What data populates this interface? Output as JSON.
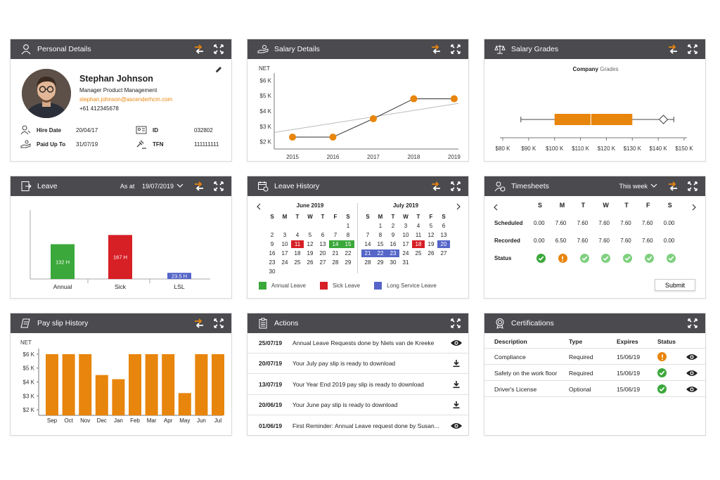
{
  "colors": {
    "header": "#4a4a4f",
    "accent": "#e8850c",
    "green": "#3aa83a",
    "red": "#d71f26",
    "blue": "#5566c8",
    "lightgreen": "#7fd07f"
  },
  "personal": {
    "title": "Personal Details",
    "name": "Stephan Johnson",
    "role": "Manager Product Management",
    "email": "stephan.johnson@ascenderhcm.com",
    "phone": "+61 412345678",
    "hire_label": "Hire Date",
    "hire_value": "20/04/17",
    "paid_label": "Paid Up To",
    "paid_value": "31/07/19",
    "id_label": "ID",
    "id_value": "032802",
    "tfn_label": "TFN",
    "tfn_value": "111111111"
  },
  "salary_details": {
    "title": "Salary Details",
    "chart_data": {
      "type": "line",
      "ylabel": "NET",
      "x": [
        "2015",
        "2016",
        "2017",
        "2018",
        "2019"
      ],
      "yticks": [
        "$2 K",
        "$3 K",
        "$4 K",
        "$5 K",
        "$6 K"
      ],
      "ylim": [
        1.8,
        6.2
      ],
      "series": [
        {
          "values": [
            2.3,
            2.3,
            3.5,
            4.8,
            4.8
          ]
        }
      ],
      "trend": [
        2.6,
        4.5
      ]
    }
  },
  "salary_grades": {
    "title": "Salary Grades",
    "subtitle_a": "Company",
    "subtitle_b": "Grades",
    "chart_data": {
      "type": "boxplot",
      "xticks": [
        "$80 K",
        "$90 K",
        "$100 K",
        "$110 K",
        "$120 K",
        "$130 K",
        "$140 K",
        "$150 K"
      ],
      "xlim": [
        80,
        150
      ],
      "whisker_low": 87,
      "q1": 100,
      "median": 114,
      "q3": 130,
      "whisker_high": 146,
      "marker": 142
    }
  },
  "leave": {
    "title": "Leave",
    "as_at_label": "As at",
    "as_at_value": "19/07/2019",
    "chart_data": {
      "type": "bar",
      "categories": [
        "Annual",
        "Sick",
        "LSL"
      ],
      "values": [
        132,
        167,
        23.5
      ],
      "labels": [
        "132 H",
        "167 H",
        "23.5 H"
      ],
      "ylim": [
        0,
        240
      ]
    }
  },
  "leave_history": {
    "title": "Leave History",
    "weekdays": [
      "S",
      "M",
      "T",
      "W",
      "T",
      "F",
      "S"
    ],
    "june": {
      "label": "June 2019"
    },
    "july": {
      "label": "July 2019"
    },
    "legend": {
      "annual": "Annual Leave",
      "sick": "Sick Leave",
      "lsl": "Long Service Leave"
    }
  },
  "timesheets": {
    "title": "Timesheets",
    "period": "This week",
    "days": [
      "S",
      "M",
      "T",
      "W",
      "T",
      "F",
      "S"
    ],
    "scheduled_label": "Scheduled",
    "scheduled": [
      "0.00",
      "7.60",
      "7.60",
      "7.60",
      "7.60",
      "7.60",
      "0.00"
    ],
    "recorded_label": "Recorded",
    "recorded": [
      "0.00",
      "6.50",
      "7.60",
      "7.60",
      "7.60",
      "7.60",
      "0.00"
    ],
    "status_label": "Status",
    "status": [
      "ok",
      "warn",
      "light",
      "light",
      "light",
      "light",
      "light"
    ],
    "submit": "Submit"
  },
  "payslip": {
    "title": "Pay slip History",
    "chart_data": {
      "type": "bar",
      "ylabel": "NET",
      "categories": [
        "Sep",
        "Oct",
        "Nov",
        "Dec",
        "Jan",
        "Feb",
        "Mar",
        "Apr",
        "May",
        "Jun",
        "Jul"
      ],
      "values": [
        6.0,
        6.0,
        6.0,
        4.5,
        4.2,
        6.0,
        6.0,
        6.0,
        3.2,
        6.0,
        6.0
      ],
      "yticks": [
        "$2 K",
        "$3 K",
        "$4 K",
        "$5 K",
        "$6 K"
      ],
      "ylim": [
        1.6,
        6.3
      ]
    }
  },
  "actions": {
    "title": "Actions",
    "items": [
      {
        "date": "25/07/19",
        "text": "Annual Leave Requests done by Niels van de Kreeke",
        "icon": "eye-icon"
      },
      {
        "date": "20/07/19",
        "text": "Your July pay slip is ready to download",
        "icon": "download-icon"
      },
      {
        "date": "13/07/19",
        "text": "Your Year End 2019 pay slip is ready to download",
        "icon": "download-icon"
      },
      {
        "date": "20/06/19",
        "text": "Your June pay slip is ready to download",
        "icon": "download-icon"
      },
      {
        "date": "01/06/19",
        "text": "First Reminder: Annual Leave request done by Susan...",
        "icon": "eye-icon"
      }
    ]
  },
  "certifications": {
    "title": "Certifications",
    "headers": {
      "desc": "Description",
      "type": "Type",
      "expires": "Expires",
      "status": "Status"
    },
    "rows": [
      {
        "desc": "Compliance",
        "type": "Required",
        "expires": "15/06/19",
        "status": "warn"
      },
      {
        "desc": "Safety on the work floor",
        "type": "Required",
        "expires": "15/06/19",
        "status": "ok"
      },
      {
        "desc": "Driver's License",
        "type": "Optional",
        "expires": "15/06/19",
        "status": "ok"
      }
    ]
  }
}
